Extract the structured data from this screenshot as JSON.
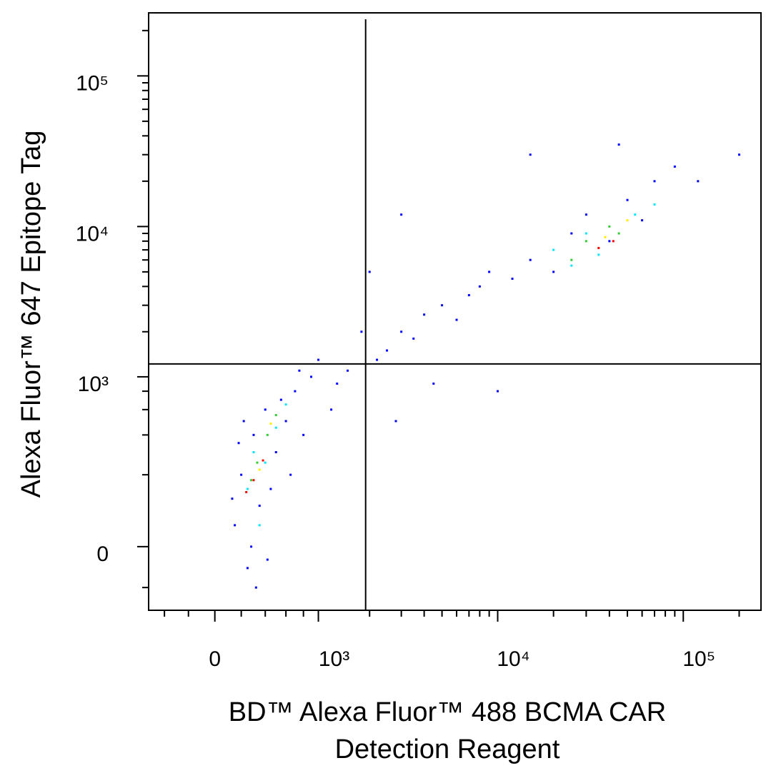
{
  "chart_data": {
    "type": "scatter",
    "xlabel": [
      "BD™ Alexa Fluor™ 488 BCMA CAR",
      "Detection Reagent"
    ],
    "ylabel": "Alexa Fluor™ 647 Epitope Tag",
    "xscale": "biexponential",
    "yscale": "biexponential",
    "xlim": [
      -550,
      262144
    ],
    "ylim": [
      -170,
      262144
    ],
    "xticks": [
      0,
      {
        "value": 1000,
        "label": "10³"
      },
      {
        "value": 10000,
        "label": "10⁴"
      },
      {
        "value": 100000,
        "label": "10⁵"
      }
    ],
    "yticks": [
      0,
      {
        "value": 1000,
        "label": "10³"
      },
      {
        "value": 10000,
        "label": "10⁴"
      },
      {
        "value": 100000,
        "label": "10⁵"
      }
    ],
    "xminorticks": [
      -400,
      -200,
      200,
      400,
      600,
      800,
      2000,
      3000,
      4000,
      5000,
      6000,
      7000,
      8000,
      9000,
      20000,
      30000,
      40000,
      50000,
      60000,
      70000,
      80000,
      90000,
      200000
    ],
    "yminorticks": [
      -100,
      200,
      400,
      600,
      800,
      2000,
      3000,
      4000,
      5000,
      6000,
      7000,
      8000,
      9000,
      20000,
      30000,
      40000,
      50000,
      60000,
      70000,
      80000,
      90000,
      200000
    ],
    "quadrant_lines": {
      "x": 1900,
      "y": 1220
    },
    "series": [
      {
        "color": "#0000ff",
        "x": [
          150,
          250,
          300,
          400,
          500,
          200,
          350,
          600,
          700,
          450,
          180,
          280,
          800,
          900,
          550,
          650,
          320,
          220,
          1200,
          1500,
          1000,
          1300,
          750,
          130,
          420,
          2500,
          3000,
          3500,
          2200,
          4000,
          5000,
          6000,
          7000,
          8000,
          9000,
          12000,
          15000,
          20000,
          25000,
          30000,
          40000,
          50000,
          60000,
          70000,
          90000,
          120000,
          200000,
          45000,
          3000,
          2000,
          1800,
          15000,
          4500,
          10000,
          2800
        ],
        "y": [
          50,
          -50,
          400,
          600,
          300,
          200,
          100,
          500,
          800,
          150,
          350,
          0,
          400,
          1000,
          700,
          200,
          -100,
          500,
          600,
          1100,
          1300,
          900,
          1100,
          120,
          -30,
          1500,
          2000,
          1800,
          1300,
          2600,
          3000,
          2400,
          3500,
          4000,
          5000,
          4500,
          6000,
          5000,
          9000,
          12000,
          8000,
          15000,
          11000,
          20000,
          25000,
          20000,
          30000,
          35000,
          12000,
          5000,
          2000,
          30000,
          900,
          800,
          500
        ]
      },
      {
        "color": "#00e5ff",
        "x": [
          300,
          400,
          250,
          500,
          600,
          350,
          20000,
          30000,
          35000,
          55000,
          25000,
          70000
        ],
        "y": [
          300,
          250,
          150,
          450,
          650,
          50,
          7000,
          9000,
          6500,
          12000,
          5500,
          14000
        ]
      },
      {
        "color": "#33cc33",
        "x": [
          330,
          420,
          280,
          500,
          30000,
          40000,
          45000,
          25000
        ],
        "y": [
          250,
          400,
          180,
          550,
          8000,
          10000,
          9000,
          6000
        ]
      },
      {
        "color": "#ffee00",
        "x": [
          350,
          450,
          38000,
          50000
        ],
        "y": [
          220,
          480,
          8500,
          11000
        ]
      },
      {
        "color": "#ff0000",
        "x": [
          300,
          380,
          240,
          42000,
          35000
        ],
        "y": [
          180,
          260,
          140,
          8000,
          7200
        ]
      }
    ]
  }
}
